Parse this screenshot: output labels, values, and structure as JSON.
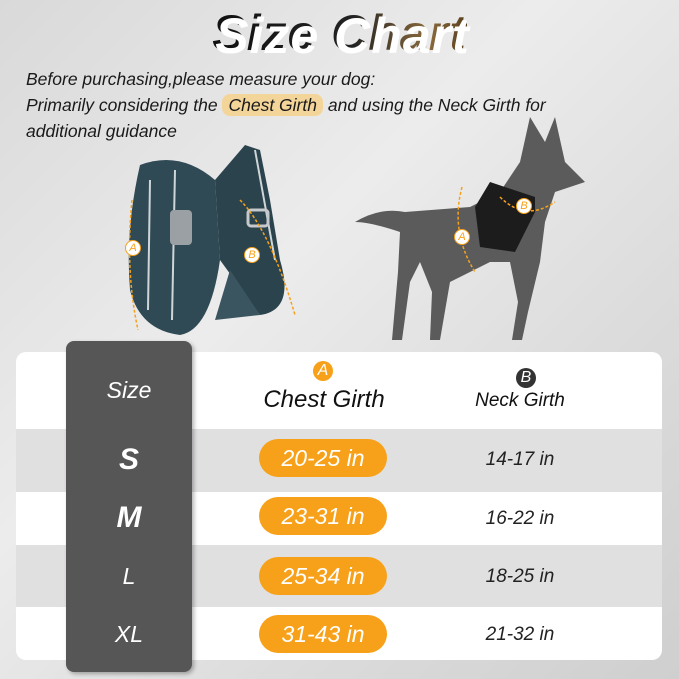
{
  "title": "Size Chart",
  "intro": {
    "line1": "Before purchasing,please measure your dog:",
    "line2_before": "Primarily considering the",
    "line2_highlight": "Chest Girth",
    "line2_after": "and using the Neck Girth for",
    "line3": "additional guidance"
  },
  "illustration_labels": {
    "a": "A",
    "b": "B"
  },
  "table": {
    "headers": {
      "size": "Size",
      "chest_badge": "A",
      "chest": "Chest Girth",
      "neck_badge": "B",
      "neck": "Neck Girth"
    },
    "rows": [
      {
        "size": "S",
        "chest": "20-25 in",
        "neck": "14-17 in"
      },
      {
        "size": "M",
        "chest": "23-31 in",
        "neck": "16-22 in"
      },
      {
        "size": "L",
        "chest": "25-34 in",
        "neck": "18-25 in"
      },
      {
        "size": "XL",
        "chest": "31-43 in",
        "neck": "21-32 in"
      }
    ]
  },
  "colors": {
    "accent": "#f7a11a",
    "size_column": "#565656",
    "highlight": "#f3d59a"
  }
}
